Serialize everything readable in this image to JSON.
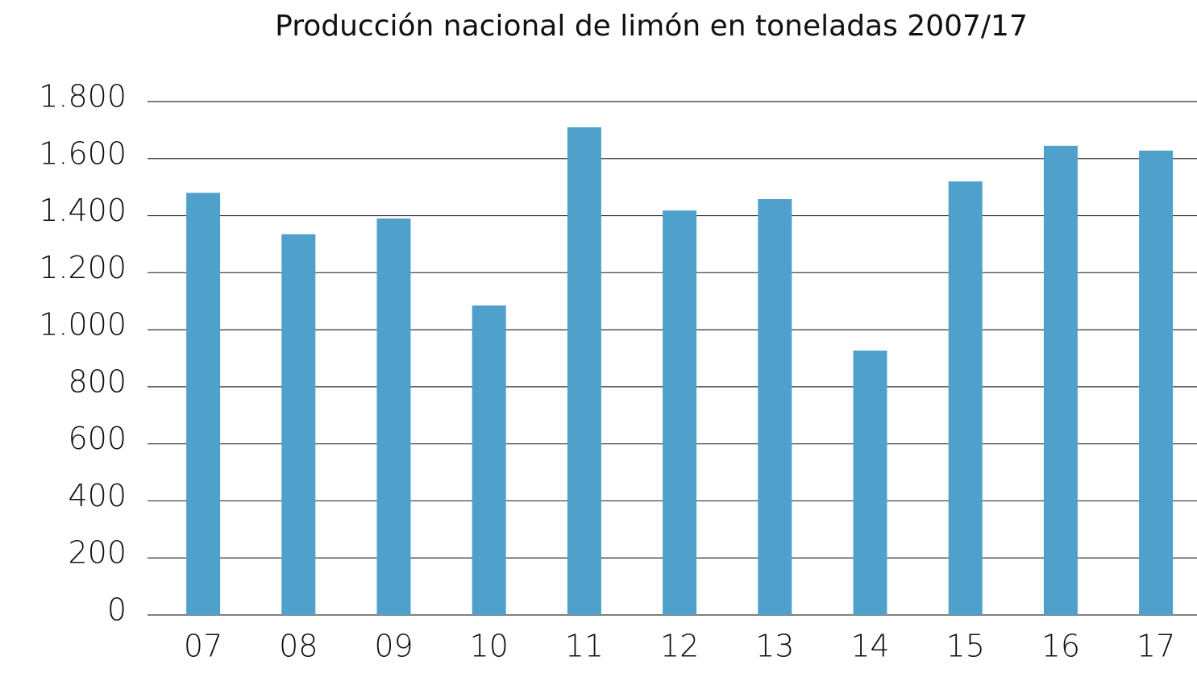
{
  "chart_data": {
    "type": "bar",
    "title": "Producción nacional de limón en toneladas 2007/17",
    "categories": [
      "07",
      "08",
      "09",
      "10",
      "11",
      "12",
      "13",
      "14",
      "15",
      "16",
      "17"
    ],
    "values": [
      1480,
      1335,
      1390,
      1085,
      1710,
      1418,
      1458,
      927,
      1520,
      1645,
      1628
    ],
    "color": "#4fa0cb",
    "ylim": [
      0,
      1800
    ],
    "yticks": [
      0,
      200,
      400,
      600,
      800,
      {
        "value": 1000,
        "label": "1.000"
      },
      {
        "value": 1200,
        "label": "1.200"
      },
      {
        "value": 1400,
        "label": "1.400"
      },
      {
        "value": 1600,
        "label": "1.600"
      },
      {
        "value": 1800,
        "label": "1.800"
      }
    ],
    "grid": true
  }
}
